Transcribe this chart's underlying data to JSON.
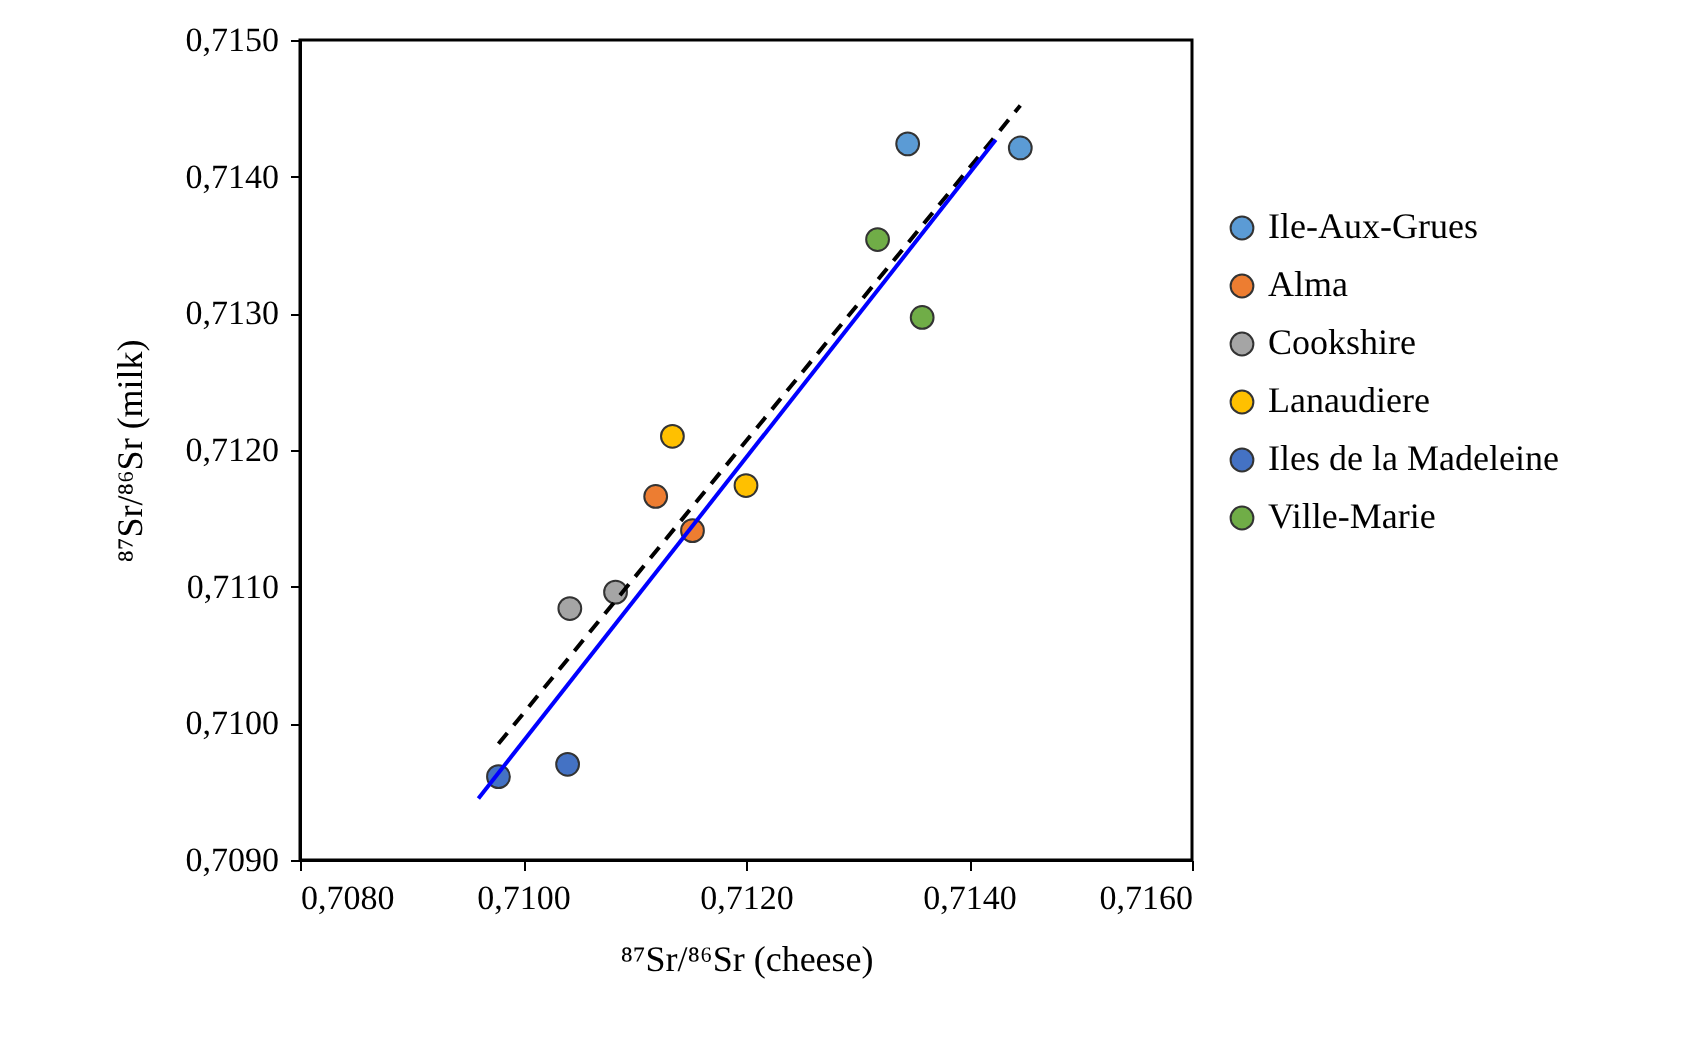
{
  "chart_data": {
    "type": "scatter",
    "xlabel": "⁸⁷Sr/⁸⁶Sr (cheese)",
    "ylabel": "⁸⁷Sr/⁸⁶Sr (milk)",
    "xlim": [
      0.708,
      0.716
    ],
    "ylim": [
      0.709,
      0.715
    ],
    "xticks": [
      {
        "value": 0.708,
        "label": "0,7080"
      },
      {
        "value": 0.71,
        "label": "0,7100"
      },
      {
        "value": 0.712,
        "label": "0,7120"
      },
      {
        "value": 0.714,
        "label": "0,7140"
      },
      {
        "value": 0.716,
        "label": "0,7160"
      }
    ],
    "yticks": [
      {
        "value": 0.709,
        "label": "0,7090"
      },
      {
        "value": 0.71,
        "label": "0,7100"
      },
      {
        "value": 0.711,
        "label": "0,7110"
      },
      {
        "value": 0.712,
        "label": "0,7120"
      },
      {
        "value": 0.713,
        "label": "0,7130"
      },
      {
        "value": 0.714,
        "label": "0,7140"
      },
      {
        "value": 0.715,
        "label": "0,7150"
      }
    ],
    "grid": false,
    "legend": "right",
    "marker": "circle",
    "series": [
      {
        "name": "Ile-Aux-Grues",
        "color": "#5b9bd5",
        "x": [
          0.71345,
          0.71446
        ],
        "values": [
          0.71424,
          0.71421
        ]
      },
      {
        "name": "Alma",
        "color": "#ed7d31",
        "x": [
          0.71119,
          0.71152
        ],
        "values": [
          0.71166,
          0.71141
        ]
      },
      {
        "name": "Cookshire",
        "color": "#a5a5a5",
        "x": [
          0.71042,
          0.71083
        ],
        "values": [
          0.71084,
          0.71096
        ]
      },
      {
        "name": "Lanaudiere",
        "color": "#ffc000",
        "x": [
          0.71134,
          0.712
        ],
        "values": [
          0.7121,
          0.71174
        ]
      },
      {
        "name": "Iles de la Madeleine",
        "color": "#4472c4",
        "x": [
          0.70978,
          0.7104
        ],
        "values": [
          0.70961,
          0.7097
        ]
      },
      {
        "name": "Ville-Marie",
        "color": "#70ad47",
        "x": [
          0.71318,
          0.71358
        ],
        "values": [
          0.71354,
          0.71297
        ]
      },
      {
        "type": "line",
        "color": "#000000",
        "line_style": "dashed",
        "marker": "none",
        "x": [
          0.70978,
          0.71446
        ],
        "values": [
          0.70985,
          0.71452
        ]
      },
      {
        "type": "line",
        "color": "#0000ff",
        "line_style": "solid",
        "marker": "none",
        "x": [
          0.7096,
          0.71424
        ],
        "values": [
          0.70945,
          0.71427
        ]
      }
    ]
  }
}
